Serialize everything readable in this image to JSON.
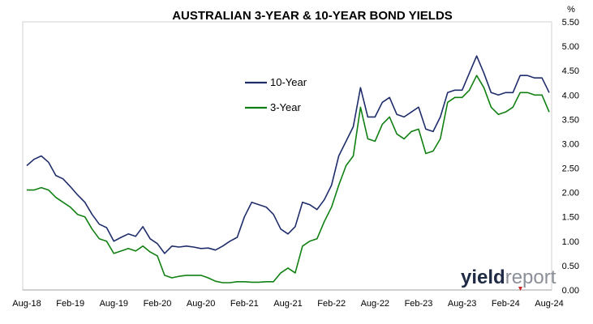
{
  "chart_data": {
    "type": "line",
    "title": "AUSTRALIAN 3-YEAR & 10-YEAR BOND YIELDS",
    "y_unit": "%",
    "ylim": [
      0,
      5.5
    ],
    "y_ticks": [
      "0.00",
      "0.50",
      "1.00",
      "1.50",
      "2.00",
      "2.50",
      "3.00",
      "3.50",
      "4.00",
      "4.50",
      "5.00",
      "5.50"
    ],
    "x_ticks": [
      "Aug-18",
      "Feb-19",
      "Aug-19",
      "Feb-20",
      "Aug-20",
      "Feb-21",
      "Aug-21",
      "Feb-22",
      "Aug-22",
      "Feb-23",
      "Aug-23",
      "Feb-24",
      "Aug-24"
    ],
    "xlim": [
      "2018-08",
      "2024-08"
    ],
    "legend_position": "upper-middle",
    "grid": false,
    "x": [
      "2018-08",
      "2018-09",
      "2018-10",
      "2018-11",
      "2018-12",
      "2019-01",
      "2019-02",
      "2019-03",
      "2019-04",
      "2019-05",
      "2019-06",
      "2019-07",
      "2019-08",
      "2019-09",
      "2019-10",
      "2019-11",
      "2019-12",
      "2020-01",
      "2020-02",
      "2020-03",
      "2020-04",
      "2020-05",
      "2020-06",
      "2020-07",
      "2020-08",
      "2020-09",
      "2020-10",
      "2020-11",
      "2020-12",
      "2021-01",
      "2021-02",
      "2021-03",
      "2021-04",
      "2021-05",
      "2021-06",
      "2021-07",
      "2021-08",
      "2021-09",
      "2021-10",
      "2021-11",
      "2021-12",
      "2022-01",
      "2022-02",
      "2022-03",
      "2022-04",
      "2022-05",
      "2022-06",
      "2022-07",
      "2022-08",
      "2022-09",
      "2022-10",
      "2022-11",
      "2022-12",
      "2023-01",
      "2023-02",
      "2023-03",
      "2023-04",
      "2023-05",
      "2023-06",
      "2023-07",
      "2023-08",
      "2023-09",
      "2023-10",
      "2023-11",
      "2023-12",
      "2024-01",
      "2024-02",
      "2024-03",
      "2024-04",
      "2024-05",
      "2024-06",
      "2024-07",
      "2024-08"
    ],
    "series": [
      {
        "name": "10-Year",
        "color": "#1f2d6b",
        "values": [
          2.55,
          2.68,
          2.75,
          2.62,
          2.35,
          2.28,
          2.12,
          1.95,
          1.8,
          1.55,
          1.35,
          1.28,
          1.0,
          1.08,
          1.15,
          1.1,
          1.3,
          1.05,
          0.95,
          0.75,
          0.9,
          0.88,
          0.9,
          0.88,
          0.85,
          0.86,
          0.82,
          0.9,
          1.0,
          1.08,
          1.5,
          1.8,
          1.75,
          1.7,
          1.55,
          1.25,
          1.15,
          1.3,
          1.8,
          1.75,
          1.65,
          1.85,
          2.15,
          2.75,
          3.05,
          3.35,
          4.15,
          3.55,
          3.55,
          3.85,
          3.95,
          3.6,
          3.55,
          3.65,
          3.75,
          3.3,
          3.25,
          3.55,
          4.05,
          4.1,
          4.1,
          4.45,
          4.8,
          4.45,
          4.05,
          4.0,
          4.05,
          4.05,
          4.4,
          4.4,
          4.35,
          4.35,
          4.05
        ]
      },
      {
        "name": "3-Year",
        "color": "#118012",
        "values": [
          2.05,
          2.05,
          2.1,
          2.05,
          1.9,
          1.8,
          1.7,
          1.55,
          1.5,
          1.25,
          1.05,
          1.0,
          0.75,
          0.8,
          0.85,
          0.8,
          0.9,
          0.78,
          0.7,
          0.3,
          0.25,
          0.28,
          0.3,
          0.3,
          0.3,
          0.25,
          0.18,
          0.15,
          0.15,
          0.17,
          0.17,
          0.16,
          0.16,
          0.17,
          0.17,
          0.35,
          0.45,
          0.35,
          0.9,
          1.0,
          1.05,
          1.4,
          1.7,
          2.15,
          2.55,
          2.75,
          3.75,
          3.1,
          3.05,
          3.4,
          3.55,
          3.2,
          3.1,
          3.25,
          3.3,
          2.8,
          2.85,
          3.1,
          3.85,
          3.95,
          3.95,
          4.1,
          4.4,
          4.15,
          3.75,
          3.6,
          3.65,
          3.75,
          4.05,
          4.05,
          4.0,
          4.0,
          3.65
        ]
      }
    ]
  },
  "watermark": {
    "part1": "yield",
    "part2": "report"
  }
}
